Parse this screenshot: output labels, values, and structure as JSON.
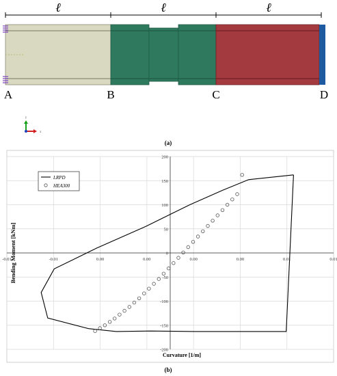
{
  "panel_a": {
    "caption": "(a)",
    "segment_label": "ℓ",
    "points": [
      "A",
      "B",
      "C",
      "D"
    ],
    "axis_triad": {
      "x": "x",
      "y": "y"
    },
    "colors": {
      "segment_ab": "#d9d8c0",
      "segment_bc": "#2f7a5f",
      "segment_cd": "#a33a3f",
      "end_plate": "#1e5aa0",
      "restraint": "#7a3fbf"
    }
  },
  "panel_b": {
    "caption": "(b)",
    "chart_data": {
      "type": "line",
      "xlabel": "Curvature [1/m]",
      "ylabel": "Bending Moment [kNm]",
      "xlim": [
        -0.01,
        0.01
      ],
      "ylim": [
        -200,
        200
      ],
      "x_tick_labels": [
        "-0.01",
        "-0.01",
        "0.00",
        "0.00",
        "0.00",
        "0.00",
        "0.01",
        "0.01"
      ],
      "y_ticks": [
        -200,
        -150,
        -100,
        -50,
        0,
        50,
        100,
        150,
        200
      ],
      "grid": true,
      "legend_position": "top-left",
      "series": [
        {
          "name": "LRPD",
          "style": "line",
          "color": "#000000",
          "x": [
            0.00755,
            0.0048,
            0.0032,
            0.0012,
            -0.0015,
            -0.0045,
            -0.0071,
            -0.0079,
            -0.0075,
            -0.005,
            -0.0033,
            -0.0012,
            0.0015,
            0.0045,
            0.0071,
            0.00755
          ],
          "y": [
            162,
            152,
            130,
            100,
            55,
            10,
            -33,
            -82,
            -135,
            -157,
            -163,
            -162,
            -163,
            -163,
            -163,
            162
          ]
        },
        {
          "name": "HEA300",
          "style": "markers",
          "marker": "circle-open",
          "color": "#555555",
          "x": [
            -0.0046,
            -0.0043,
            -0.004,
            -0.0037,
            -0.0034,
            -0.0031,
            -0.0028,
            -0.0025,
            -0.0022,
            -0.0019,
            -0.0016,
            -0.0013,
            -0.001,
            -0.0007,
            -0.0004,
            -0.0001,
            0.0002,
            0.0005,
            0.0008,
            0.0011,
            0.0014,
            0.0017,
            0.002,
            0.0023,
            0.0026,
            0.0029,
            0.0032,
            0.0035,
            0.0038,
            0.0041,
            0.0044
          ],
          "y": [
            -162,
            -156,
            -150,
            -143,
            -136,
            -128,
            -120,
            -112,
            -103,
            -94,
            -84,
            -74,
            -64,
            -54,
            -43,
            -32,
            -21,
            -10,
            1,
            12,
            23,
            34,
            45,
            56,
            67,
            78,
            89,
            100,
            111,
            122,
            162
          ]
        }
      ]
    }
  }
}
